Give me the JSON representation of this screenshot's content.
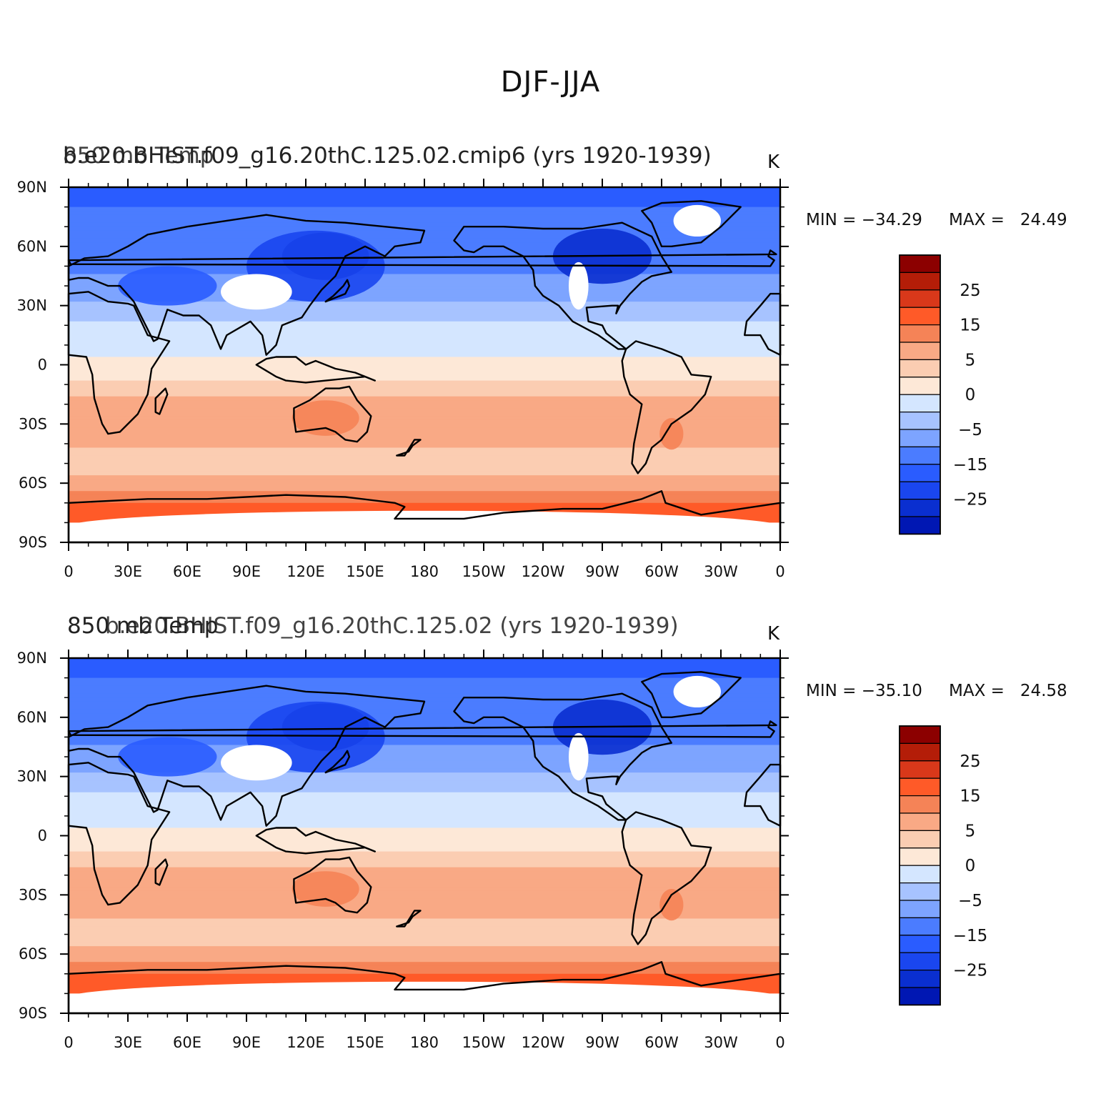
{
  "figure": {
    "title": "DJF-JJA"
  },
  "palette": [
    "#000d8c",
    "#0017b3",
    "#0a2fd0",
    "#1a46ef",
    "#2a5cff",
    "#4b7cff",
    "#7da4ff",
    "#a7c3ff",
    "#d4e6ff",
    "#fde8d7",
    "#fbcdb2",
    "#f9a985",
    "#f58357",
    "#ff5a28",
    "#d9381a",
    "#b41d08",
    "#8c0000"
  ],
  "colorbar": {
    "labels": [
      "25",
      "15",
      "5",
      "0",
      "−5",
      "−15",
      "−25"
    ],
    "label_boxes": [
      2,
      4,
      6,
      8,
      10,
      12,
      14
    ]
  },
  "axes": {
    "lat_labels": [
      "90N",
      "60N",
      "30N",
      "0",
      "30S",
      "60S",
      "90S"
    ],
    "lon_labels": [
      "0",
      "30E",
      "60E",
      "90E",
      "120E",
      "150E",
      "180",
      "150W",
      "120W",
      "90W",
      "60W",
      "30W",
      "0"
    ]
  },
  "panels": [
    {
      "left_title": "b.e20.BHIST.f09_g16.20thC.125.02.cmip6 (yrs 1920-1939)",
      "left_string": "850 mb Temp",
      "units": "K",
      "min_label": "MIN = −34.29",
      "max_label": "MAX =   24.49"
    },
    {
      "left_title": "b.e20.BHIST.f09_g16.20thC.125.02 (yrs 1920-1939)",
      "left_string": "850 mb Temp",
      "units": "K",
      "min_label": "MIN = −35.10",
      "max_label": "MAX =   24.58"
    }
  ]
}
